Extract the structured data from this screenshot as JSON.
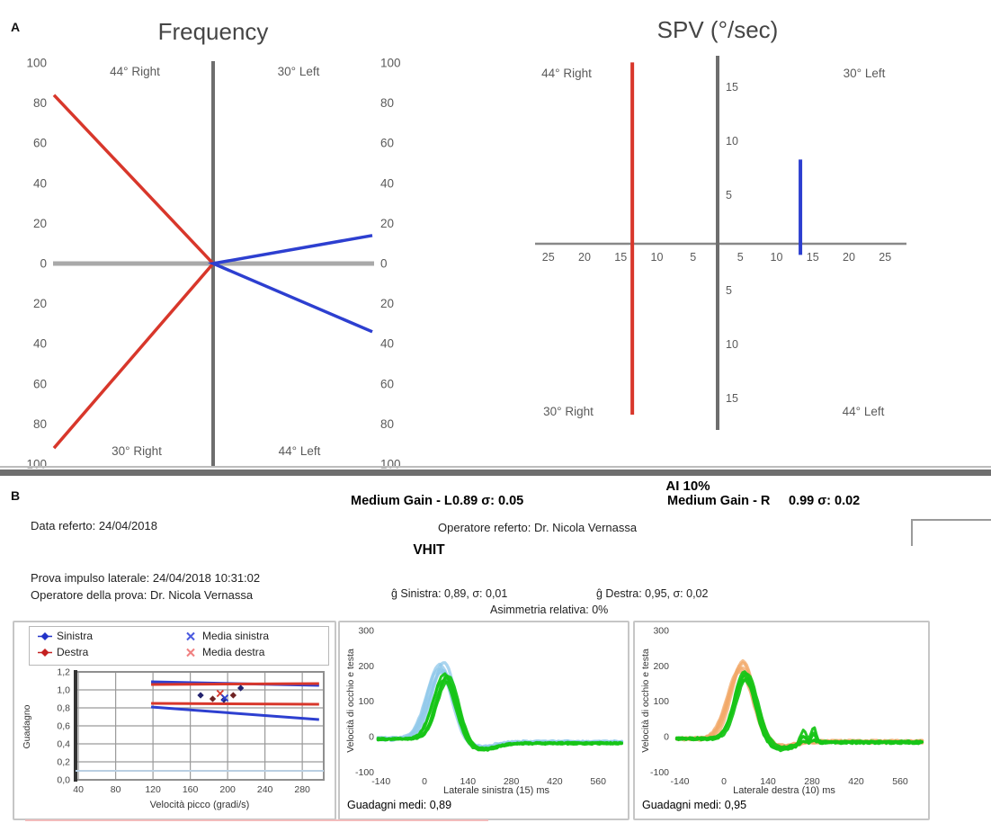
{
  "labels": {
    "section_a": "A",
    "section_b": "B"
  },
  "summary": {
    "ai": "AI 10%",
    "medium_gain_l_label": "Medium Gain - L",
    "medium_gain_l_value": "0.89 σ: 0.05",
    "medium_gain_r_label": "Medium Gain - R",
    "medium_gain_r_value": "0.99 σ: 0.02"
  },
  "report": {
    "data_referto": "Data referto: 24/04/2018",
    "operatore_referto": "Operatore referto: Dr. Nicola Vernassa",
    "title": "VHIT",
    "prova_impulso": "Prova impulso laterale: 24/04/2018 10:31:02",
    "operatore_prova": "Operatore della prova: Dr. Nicola Vernassa",
    "gain_sinistra": "ĝ Sinistra: 0,89, σ: 0,01",
    "gain_destra": "ĝ Destra: 0,95, σ: 0,02",
    "asimmetria": "Asimmetria relativa: 0%"
  },
  "legend": {
    "items": [
      {
        "label": "Sinistra",
        "marker": "diamond",
        "color": "#2233c8"
      },
      {
        "label": "Destra",
        "marker": "diamond",
        "color": "#c42020"
      },
      {
        "label": "Media sinistra",
        "marker": "x",
        "color": "#4a5ae0"
      },
      {
        "label": "Media destra",
        "marker": "x",
        "color": "#f08080"
      }
    ]
  },
  "colors": {
    "red_line": "#d8372b",
    "blue_line": "#2d3fd0",
    "axis_gray": "#8f8f8f",
    "head_left": "#8ec7ea",
    "head_right": "#f2a868",
    "eye_green": "#17c517"
  },
  "chart_data": [
    {
      "id": "caloric-frequency-butterfly",
      "type": "line",
      "title": "Frequency",
      "ylim": [
        -100,
        100
      ],
      "y_ticks": [
        100,
        80,
        60,
        40,
        20,
        0,
        -20,
        -40,
        -60,
        -80,
        -100
      ],
      "quadrants": {
        "top_left": "44° Right",
        "top_right": "30° Left",
        "bottom_left": "30° Right",
        "bottom_right": "44° Left"
      },
      "series": [
        {
          "name": "right-ear-red",
          "color": "#d8372b",
          "points": [
            [
              -100,
              84
            ],
            [
              0,
              0
            ],
            [
              -100,
              -92
            ]
          ]
        },
        {
          "name": "left-ear-blue",
          "color": "#2d3fd0",
          "points": [
            [
              100,
              14
            ],
            [
              0,
              0
            ],
            [
              100,
              -34
            ]
          ]
        }
      ]
    },
    {
      "id": "caloric-spv",
      "type": "line",
      "title": "SPV (°/sec)",
      "x_ticks_left": [
        25,
        20,
        15,
        10,
        5
      ],
      "x_ticks_right": [
        5,
        10,
        15,
        20,
        25
      ],
      "y_ticks_top": [
        15,
        10,
        5
      ],
      "y_ticks_bottom": [
        5,
        10,
        15
      ],
      "quadrants": {
        "top_left": "44° Right",
        "top_right": "30° Left",
        "bottom_left": "30° Right",
        "bottom_right": "44° Left"
      },
      "bars": [
        {
          "name": "right-ear-spv",
          "color": "#d8372b",
          "side": "left",
          "x": 13.4,
          "from": 17.3,
          "to": -16.5
        },
        {
          "name": "left-ear-spv",
          "color": "#2d3fd0",
          "side": "right",
          "x": 13.3,
          "from": 8.3,
          "to": -1.7
        }
      ]
    },
    {
      "id": "vhit-gain-vs-peak-velocity",
      "type": "line+scatter",
      "xlabel": "Velocità picco (gradi/s)",
      "ylabel": "Guadagno",
      "x_ticks": [
        40,
        80,
        120,
        160,
        200,
        240,
        280
      ],
      "y_tick_labels": [
        "1,2",
        "1,0",
        "0,8",
        "0,6",
        "0,4",
        "0,2",
        "0,0"
      ],
      "xlim": [
        37,
        303
      ],
      "ylim": [
        0,
        1.2
      ],
      "lines": [
        {
          "name": "media-sinistra-sup",
          "color": "#2d3fd0",
          "from": [
            118,
            1.09
          ],
          "to": [
            298,
            1.05
          ]
        },
        {
          "name": "media-destra-sup",
          "color": "#d8372b",
          "from": [
            118,
            1.06
          ],
          "to": [
            298,
            1.07
          ]
        },
        {
          "name": "media-destra-inf",
          "color": "#d8372b",
          "from": [
            118,
            0.85
          ],
          "to": [
            298,
            0.84
          ]
        },
        {
          "name": "media-sinistra-inf",
          "color": "#2d3fd0",
          "from": [
            118,
            0.81
          ],
          "to": [
            298,
            0.67
          ]
        },
        {
          "name": "ref-low",
          "color": "#b9cfe2",
          "from": [
            37,
            0.1
          ],
          "to": [
            303,
            0.1
          ]
        }
      ],
      "scatter": [
        {
          "marker": "diamond",
          "color": "#23236e",
          "x": 171,
          "y": 0.94
        },
        {
          "marker": "diamond",
          "color": "#6e2323",
          "x": 184,
          "y": 0.9
        },
        {
          "marker": "diamond",
          "color": "#23236e",
          "x": 196,
          "y": 0.89
        },
        {
          "marker": "diamond",
          "color": "#6e2323",
          "x": 206,
          "y": 0.94
        },
        {
          "marker": "diamond",
          "color": "#23236e",
          "x": 214,
          "y": 1.02
        },
        {
          "marker": "x",
          "color": "#d8372b",
          "x": 192,
          "y": 0.96
        },
        {
          "marker": "x",
          "color": "#2d3fd0",
          "x": 197,
          "y": 0.91
        }
      ]
    },
    {
      "id": "vhit-lateral-left",
      "type": "line",
      "xlabel": "Laterale sinistra (15) ms",
      "ylabel": "Velocità di occhio e testa",
      "caption": "Guadagni medi: 0,89",
      "x_ticks": [
        -140,
        0,
        140,
        280,
        420,
        560
      ],
      "y_ticks": [
        300,
        200,
        100,
        0,
        -100
      ],
      "xlim": [
        -150,
        640
      ],
      "ylim": [
        -110,
        310
      ],
      "head": {
        "name": "head-velocity",
        "color": "#8ec7ea",
        "count": 5,
        "peak": 205,
        "peak_t": 56,
        "sigma": 40,
        "undershoot": 24,
        "under_t": 168,
        "under_sigma": 50,
        "tail": -10
      },
      "eye": {
        "name": "eye-velocity",
        "color": "#17c517",
        "count": 5,
        "peak": 178,
        "peak_t": 70,
        "sigma": 34,
        "undershoot": 25,
        "under_t": 176,
        "under_sigma": 46,
        "tail": -12
      }
    },
    {
      "id": "vhit-lateral-right",
      "type": "line",
      "xlabel": "Laterale destra (10) ms",
      "ylabel": "Velocità di occhio e testa",
      "caption": "Guadagni medi: 0,95",
      "x_ticks": [
        -140,
        0,
        140,
        280,
        420,
        560
      ],
      "y_ticks": [
        300,
        200,
        100,
        0,
        -100
      ],
      "xlim": [
        -150,
        630
      ],
      "ylim": [
        -110,
        310
      ],
      "head": {
        "name": "head-velocity",
        "color": "#f2a868",
        "count": 5,
        "peak": 212,
        "peak_t": 55,
        "sigma": 38,
        "undershoot": 20,
        "under_t": 165,
        "under_sigma": 46,
        "tail": -8
      },
      "eye": {
        "name": "eye-velocity",
        "color": "#17c517",
        "count": 5,
        "peak": 180,
        "peak_t": 68,
        "sigma": 33,
        "undershoot": 26,
        "under_t": 172,
        "under_sigma": 44,
        "tail": -10,
        "bumps": [
          {
            "t": 252,
            "amp": 38,
            "sigma": 9
          },
          {
            "t": 285,
            "amp": 42,
            "sigma": 8
          }
        ]
      }
    }
  ]
}
